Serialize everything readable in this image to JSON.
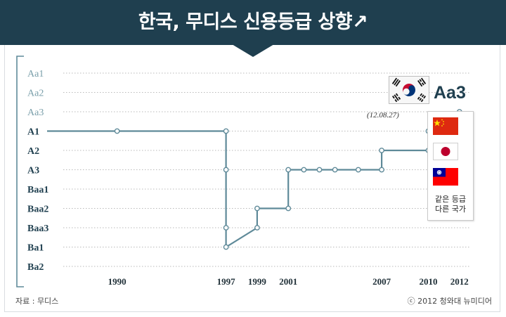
{
  "header": {
    "title": "한국, 무디스 신용등급 상향↗"
  },
  "chart_data": {
    "type": "line",
    "title": "한국, 무디스 신용등급 상향↗",
    "xlabel": "",
    "ylabel": "",
    "y_categories": [
      "Aa1",
      "Aa2",
      "Aa3",
      "A1",
      "A2",
      "A3",
      "Baa1",
      "Baa2",
      "Baa3",
      "Ba1",
      "Ba2"
    ],
    "x_ticks": [
      "1990",
      "1997",
      "1999",
      "2001",
      "2007",
      "2010",
      "2012"
    ],
    "xlim": [
      1985.5,
      2013.5
    ],
    "step": "post",
    "series": [
      {
        "points": [
          {
            "x": 1985.5,
            "y": "A1"
          },
          {
            "x": 1990,
            "y": "A1"
          },
          {
            "x": 1997.0,
            "y": "A1"
          },
          {
            "x": 1997.0,
            "y": "A3"
          },
          {
            "x": 1997.0,
            "y": "Baa3"
          },
          {
            "x": 1997.0,
            "y": "Ba1"
          },
          {
            "x": 1999.0,
            "y": "Baa3"
          },
          {
            "x": 1999.0,
            "y": "Baa2"
          },
          {
            "x": 2001.0,
            "y": "Baa2"
          },
          {
            "x": 2001.0,
            "y": "A3"
          },
          {
            "x": 2002.0,
            "y": "A3"
          },
          {
            "x": 2003.0,
            "y": "A3"
          },
          {
            "x": 2004.0,
            "y": "A3"
          },
          {
            "x": 2005.5,
            "y": "A3"
          },
          {
            "x": 2007.0,
            "y": "A3"
          },
          {
            "x": 2007.0,
            "y": "A2"
          },
          {
            "x": 2010.0,
            "y": "A2"
          },
          {
            "x": 2010.0,
            "y": "A1"
          },
          {
            "x": 2012.0,
            "y": "A1"
          },
          {
            "x": 2012.0,
            "y": "Aa3"
          }
        ]
      }
    ],
    "grid": true
  },
  "callout": {
    "rating": "Aa3",
    "date": "(12.08.27)"
  },
  "legend": {
    "caption_line1": "같은 등급",
    "caption_line2": "다른 국가"
  },
  "footer": {
    "source": "자료 : 무디스",
    "copyright": "ⓒ 2012 청와대 뉴미디어"
  },
  "colors": {
    "banner": "#1f3f4f",
    "line": "#5f8a99",
    "label_dark": "#1f3f4f",
    "label_light": "#7a9faa",
    "grid": "#b9b9b9"
  },
  "icons": {
    "korea": "south-korea-flag-icon",
    "legend": [
      "china-flag-icon",
      "japan-flag-icon",
      "taiwan-flag-icon"
    ]
  }
}
